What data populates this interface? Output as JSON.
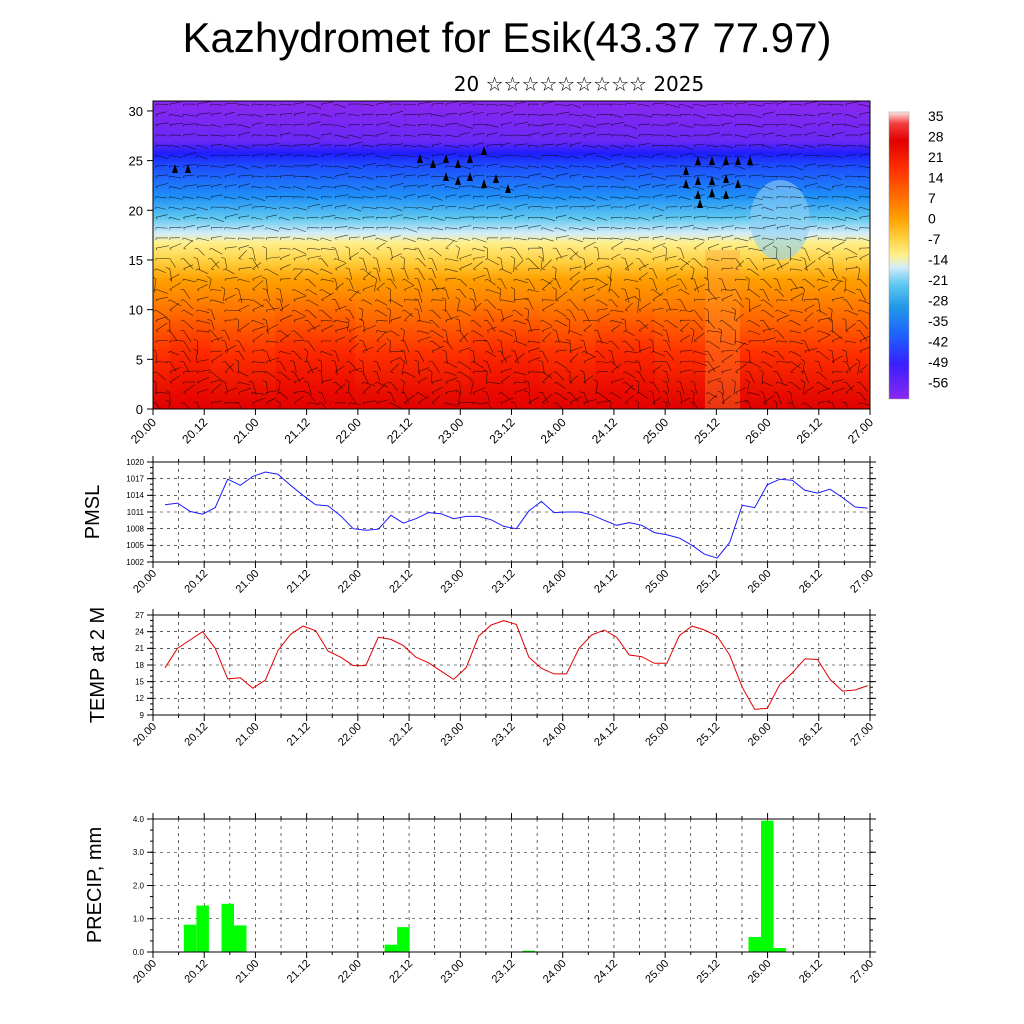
{
  "title": "Kazhydromet for Esik(43.37 77.97)",
  "subtitle": "20 ☆☆☆☆☆☆☆☆☆ 2025",
  "time_ticks": [
    "20.00",
    "20.12",
    "21.00",
    "21.12",
    "22.00",
    "22.12",
    "23.00",
    "23.12",
    "24.00",
    "24.12",
    "25.00",
    "25.12",
    "26.00",
    "26.12",
    "27.00"
  ],
  "chart_data": [
    {
      "type": "heatmap",
      "name": "cross-section",
      "ylim": [
        0,
        31
      ],
      "yticks": [
        0,
        5,
        10,
        15,
        20,
        25,
        30
      ],
      "colorbar_labels": [
        "35",
        "28",
        "21",
        "14",
        "7",
        "0",
        "-7",
        "-14",
        "-21",
        "-28",
        "-35",
        "-42",
        "-49",
        "-56"
      ],
      "colorbar_stops": [
        "#fbe7e7",
        "#f53d3d",
        "#e00000",
        "#ff3000",
        "#ff6a00",
        "#ffa000",
        "#ffd040",
        "#fff08c",
        "#d4ecf8",
        "#60c8f0",
        "#2098e8",
        "#1e60ff",
        "#1e1eff",
        "#8a28f0"
      ]
    },
    {
      "type": "line",
      "ylabel": "PMSL",
      "ylim": [
        1002,
        1020
      ],
      "yticks": [
        1002,
        1005,
        1008,
        1011,
        1014,
        1017,
        1020
      ],
      "color": "#1a1aff",
      "step_hours": 3,
      "values": [
        1012.3,
        1012.6,
        1011.1,
        1010.6,
        1011.8,
        1016.9,
        1015.8,
        1017.4,
        1018.2,
        1017.8,
        1015.8,
        1014.0,
        1012.3,
        1012.1,
        1010.3,
        1008.0,
        1007.7,
        1007.9,
        1010.4,
        1009.0,
        1009.8,
        1010.9,
        1010.7,
        1009.8,
        1010.2,
        1010.2,
        1009.6,
        1008.4,
        1008.0,
        1011.2,
        1012.9,
        1010.9,
        1011.0,
        1011.0,
        1010.5,
        1009.5,
        1008.6,
        1009.1,
        1008.6,
        1007.3,
        1006.9,
        1006.3,
        1005.0,
        1003.4,
        1002.7,
        1005.5,
        1012.2,
        1011.8,
        1015.9,
        1016.9,
        1016.7,
        1014.9,
        1014.4,
        1015.1,
        1013.6,
        1011.9,
        1011.7
      ]
    },
    {
      "type": "line",
      "ylabel": "TEMP at 2 M",
      "ylim": [
        9,
        27
      ],
      "yticks": [
        9,
        12,
        15,
        18,
        21,
        24,
        27
      ],
      "color": "#e00000",
      "step_hours": 3,
      "values": [
        17.5,
        21.0,
        22.5,
        24.0,
        21.0,
        15.5,
        15.7,
        13.8,
        15.3,
        20.6,
        23.5,
        25.0,
        24.2,
        20.5,
        19.4,
        17.9,
        17.9,
        23.0,
        22.6,
        21.5,
        19.4,
        18.4,
        16.9,
        15.4,
        17.5,
        23.2,
        25.2,
        26.0,
        25.3,
        19.4,
        17.4,
        16.4,
        16.4,
        21.0,
        23.4,
        24.3,
        23.0,
        19.8,
        19.5,
        18.3,
        18.3,
        23.3,
        25.0,
        24.3,
        23.2,
        19.8,
        14.0,
        10.0,
        10.2,
        14.5,
        16.6,
        19.1,
        19.0,
        15.4,
        13.3,
        13.5,
        14.3
      ]
    },
    {
      "type": "bar",
      "ylabel": "PRECIP, mm",
      "ylim": [
        0,
        4
      ],
      "yticks": [
        "0.0",
        "1.0",
        "2.0",
        "3.0",
        "4.0"
      ],
      "color": "#00ff00",
      "step_hours": 3,
      "values": [
        0,
        0,
        0.82,
        1.4,
        0,
        1.45,
        0.8,
        0,
        0,
        0,
        0,
        0,
        0,
        0,
        0,
        0,
        0,
        0,
        0.22,
        0.75,
        0,
        0,
        0,
        0,
        0,
        0,
        0,
        0,
        0,
        0.04,
        0,
        0,
        0,
        0,
        0,
        0,
        0,
        0,
        0,
        0,
        0,
        0,
        0,
        0,
        0,
        0.01,
        0,
        0.45,
        3.95,
        0.12,
        0,
        0,
        0,
        0,
        0,
        0
      ]
    }
  ]
}
